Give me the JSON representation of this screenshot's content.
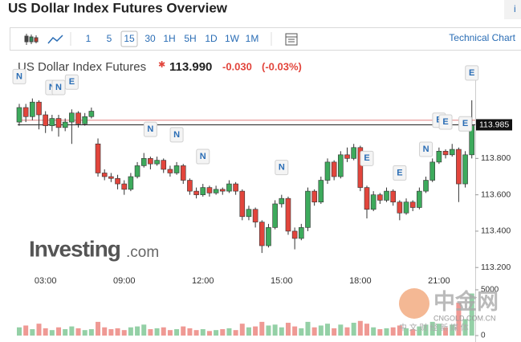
{
  "header": {
    "title": "US Dollar Index Futures Overview",
    "corner": "i"
  },
  "toolbar": {
    "intervals": [
      "1",
      "5",
      "15",
      "30",
      "1H",
      "5H",
      "1D",
      "1W",
      "1M"
    ],
    "selected": 2,
    "link": "Technical Chart"
  },
  "quote": {
    "name": "US Dollar Index Futures",
    "price": "113.990",
    "change": "-0.030",
    "change_pct": "(-0.03%)"
  },
  "watermark": {
    "brand": "Investing",
    "domain": ".com",
    "cn_name": "中金网",
    "cn_site": "CNGOLD.COM.CN",
    "cn_slogan": "中 文 财 经 新 媒 体"
  },
  "chart_data": {
    "type": "candlestick",
    "categories": [
      null,
      null,
      null,
      null,
      "03:00",
      null,
      null,
      null,
      null,
      null,
      null,
      null,
      null,
      null,
      null,
      null,
      "09:00",
      null,
      null,
      null,
      null,
      null,
      null,
      null,
      null,
      null,
      null,
      null,
      "12:00",
      null,
      null,
      null,
      null,
      null,
      null,
      null,
      null,
      null,
      null,
      null,
      "15:00",
      null,
      null,
      null,
      null,
      null,
      null,
      null,
      null,
      null,
      null,
      null,
      "18:00",
      null,
      null,
      null,
      null,
      null,
      null,
      null,
      null,
      null,
      null,
      null,
      "21:00",
      null,
      null,
      null,
      null,
      null
    ],
    "open": [
      114.0,
      114.08,
      114.03,
      114.11,
      114.04,
      113.98,
      114.02,
      113.97,
      114.0,
      114.05,
      113.99,
      114.03,
      113.88,
      113.72,
      113.7,
      113.69,
      113.66,
      113.63,
      113.7,
      113.76,
      113.8,
      113.77,
      113.79,
      113.74,
      113.72,
      113.76,
      113.68,
      113.62,
      113.6,
      113.64,
      113.61,
      113.63,
      113.62,
      113.66,
      113.62,
      113.48,
      113.52,
      113.45,
      113.32,
      113.42,
      113.55,
      113.58,
      113.4,
      113.36,
      113.42,
      113.62,
      113.56,
      113.68,
      113.78,
      113.7,
      113.82,
      113.8,
      113.86,
      113.64,
      113.52,
      113.6,
      113.57,
      113.62,
      113.56,
      113.5,
      113.56,
      113.53,
      113.62,
      113.68,
      113.78,
      113.84,
      113.82,
      113.85,
      113.66,
      113.82
    ],
    "high": [
      114.1,
      114.1,
      114.13,
      114.12,
      114.06,
      114.04,
      114.04,
      114.02,
      114.07,
      114.06,
      114.05,
      114.08,
      113.91,
      113.74,
      113.72,
      113.71,
      113.68,
      113.72,
      113.78,
      113.83,
      113.81,
      113.81,
      113.8,
      113.76,
      113.78,
      113.77,
      113.69,
      113.64,
      113.66,
      113.65,
      113.65,
      113.64,
      113.68,
      113.67,
      113.63,
      113.54,
      113.53,
      113.46,
      113.44,
      113.57,
      113.6,
      113.59,
      113.42,
      113.44,
      113.64,
      113.63,
      113.7,
      113.8,
      113.79,
      113.84,
      113.86,
      113.88,
      113.87,
      113.65,
      113.62,
      113.61,
      113.64,
      113.63,
      113.57,
      113.58,
      113.57,
      113.64,
      113.7,
      113.8,
      113.86,
      113.85,
      113.88,
      113.86,
      113.84,
      114.12
    ],
    "low": [
      113.98,
      114.0,
      114.01,
      113.96,
      113.94,
      113.95,
      113.92,
      113.95,
      113.88,
      113.97,
      113.98,
      114.02,
      113.7,
      113.68,
      113.67,
      113.63,
      113.6,
      113.62,
      113.69,
      113.75,
      113.74,
      113.76,
      113.72,
      113.7,
      113.71,
      113.66,
      113.6,
      113.58,
      113.59,
      113.59,
      113.6,
      113.6,
      113.61,
      113.6,
      113.46,
      113.46,
      113.42,
      113.28,
      113.31,
      113.41,
      113.53,
      113.38,
      113.3,
      113.35,
      113.4,
      113.54,
      113.55,
      113.66,
      113.68,
      113.69,
      113.78,
      113.79,
      113.62,
      113.47,
      113.51,
      113.55,
      113.56,
      113.54,
      113.46,
      113.49,
      113.51,
      113.52,
      113.61,
      113.67,
      113.77,
      113.8,
      113.81,
      113.56,
      113.64,
      113.8
    ],
    "close": [
      114.08,
      114.03,
      114.11,
      114.04,
      113.98,
      114.02,
      113.97,
      114.0,
      114.05,
      113.99,
      114.03,
      114.06,
      113.72,
      113.7,
      113.69,
      113.66,
      113.63,
      113.7,
      113.76,
      113.8,
      113.77,
      113.79,
      113.74,
      113.72,
      113.76,
      113.68,
      113.62,
      113.6,
      113.64,
      113.61,
      113.63,
      113.62,
      113.66,
      113.62,
      113.48,
      113.52,
      113.45,
      113.32,
      113.42,
      113.55,
      113.58,
      113.4,
      113.36,
      113.42,
      113.62,
      113.56,
      113.68,
      113.78,
      113.7,
      113.82,
      113.8,
      113.86,
      113.64,
      113.52,
      113.6,
      113.57,
      113.62,
      113.56,
      113.5,
      113.56,
      113.53,
      113.62,
      113.68,
      113.78,
      113.84,
      113.82,
      113.85,
      113.66,
      113.82,
      113.98
    ],
    "up_color": "#3daa5c",
    "down_color": "#e2453c",
    "ylim": [
      113.17,
      114.23
    ],
    "yticks": [
      {
        "value": 113.2,
        "label": "113.200"
      },
      {
        "value": 113.4,
        "label": "113.400"
      },
      {
        "value": 113.6,
        "label": "113.600"
      },
      {
        "value": 113.8,
        "label": "113.800"
      }
    ],
    "last_price": {
      "value": 113.985,
      "label": "113.985"
    },
    "reference_line": 114.01,
    "events": [
      {
        "label": "N",
        "index": 0
      },
      {
        "label": "N",
        "index": 5
      },
      {
        "label": "N",
        "index": 6
      },
      {
        "label": "E",
        "index": 8
      },
      {
        "label": "N",
        "index": 20
      },
      {
        "label": "N",
        "index": 24
      },
      {
        "label": "N",
        "index": 28
      },
      {
        "label": "N",
        "index": 40
      },
      {
        "label": "E",
        "index": 53
      },
      {
        "label": "E",
        "index": 58
      },
      {
        "label": "N",
        "index": 62
      },
      {
        "label": "E",
        "index": 64
      },
      {
        "label": "E",
        "index": 65
      },
      {
        "label": "E",
        "index": 68
      },
      {
        "label": "E",
        "index": 69
      }
    ],
    "volume": {
      "values": [
        900,
        1100,
        700,
        1300,
        800,
        600,
        900,
        700,
        1000,
        800,
        600,
        700,
        1500,
        900,
        700,
        800,
        600,
        900,
        1000,
        1200,
        700,
        800,
        900,
        600,
        700,
        1000,
        800,
        600,
        700,
        500,
        600,
        700,
        800,
        600,
        1300,
        900,
        1000,
        1500,
        1100,
        1200,
        900,
        1400,
        1000,
        800,
        1500,
        900,
        1100,
        1300,
        800,
        1200,
        900,
        1400,
        1600,
        1300,
        900,
        700,
        800,
        900,
        1100,
        800,
        700,
        1000,
        1200,
        1500,
        1300,
        900,
        1200,
        3600,
        1800,
        4600
      ],
      "ylim": [
        0,
        5000
      ],
      "yticks": [
        0,
        5000
      ]
    }
  }
}
